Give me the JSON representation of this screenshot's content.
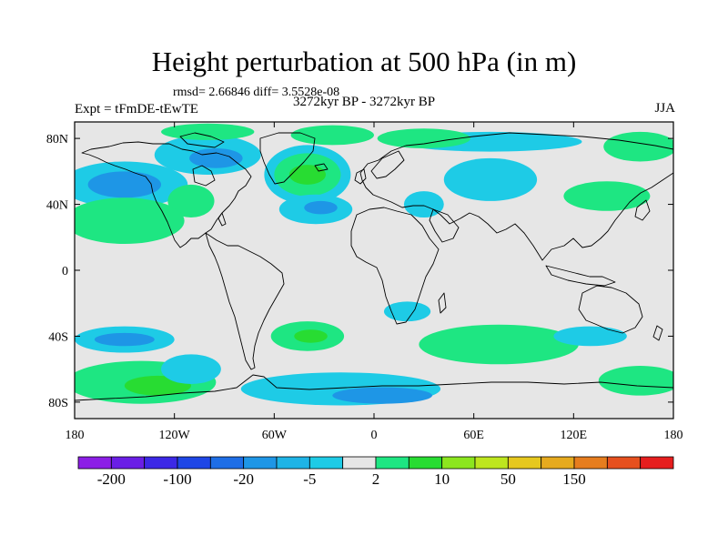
{
  "title": "Height perturbation at 500 hPa (in m)",
  "stats": "rmsd= 2.66846 diff= 3.5528e-08",
  "experiment": "Expt = tFmDE-tEwTE",
  "period": "3272kyr BP - 3272kyr BP",
  "season": "JJA",
  "map": {
    "projection": "cylindrical-equidistant",
    "lon_range": [
      -180,
      180
    ],
    "lat_range": [
      -90,
      90
    ],
    "lat_ticks": [
      {
        "value": 80,
        "label": "80N"
      },
      {
        "value": 40,
        "label": "40N"
      },
      {
        "value": 0,
        "label": "0"
      },
      {
        "value": -40,
        "label": "40S"
      },
      {
        "value": -80,
        "label": "80S"
      }
    ],
    "lon_ticks": [
      {
        "value": -180,
        "label": "180"
      },
      {
        "value": -120,
        "label": "120W"
      },
      {
        "value": -60,
        "label": "60W"
      },
      {
        "value": 0,
        "label": "0"
      },
      {
        "value": 60,
        "label": "60E"
      },
      {
        "value": 120,
        "label": "120E"
      },
      {
        "value": 180,
        "label": "180"
      }
    ],
    "background_color": "#e6e6e6",
    "coastline_color": "#000000"
  },
  "colorbar": {
    "colors": [
      "#8c1ee6",
      "#6a1ee6",
      "#3c28e6",
      "#1e46e6",
      "#1e6ee6",
      "#1e96e6",
      "#1eb4e6",
      "#1ecbe6",
      "#e6e6e6",
      "#1ee682",
      "#28dc32",
      "#8ce61e",
      "#bee61e",
      "#e6c81e",
      "#e6aa1e",
      "#e67d1e",
      "#e6501e",
      "#e61e1e"
    ],
    "labels": [
      {
        "boundary": 1,
        "text": "-200"
      },
      {
        "boundary": 3,
        "text": "-100"
      },
      {
        "boundary": 5,
        "text": "-20"
      },
      {
        "boundary": 7,
        "text": "-5"
      },
      {
        "boundary": 9,
        "text": "2"
      },
      {
        "boundary": 11,
        "text": "10"
      },
      {
        "boundary": 13,
        "text": "50"
      },
      {
        "boundary": 15,
        "text": "150"
      }
    ]
  },
  "field": {
    "blobs": [
      {
        "lon": -150,
        "lat": 52,
        "rlon": 38,
        "rlat": 14,
        "level": "neg3"
      },
      {
        "lon": -150,
        "lat": 52,
        "rlon": 22,
        "rlat": 8,
        "level": "neg4"
      },
      {
        "lon": -110,
        "lat": 42,
        "rlon": 14,
        "rlat": 10,
        "level": "pos1"
      },
      {
        "lon": -100,
        "lat": 70,
        "rlon": 32,
        "rlat": 12,
        "level": "neg3"
      },
      {
        "lon": -95,
        "lat": 68,
        "rlon": 16,
        "rlat": 6,
        "level": "neg4"
      },
      {
        "lon": -100,
        "lat": 84,
        "rlon": 28,
        "rlat": 5,
        "level": "pos1"
      },
      {
        "lon": -40,
        "lat": 58,
        "rlon": 26,
        "rlat": 18,
        "level": "neg3"
      },
      {
        "lon": -40,
        "lat": 58,
        "rlon": 20,
        "rlat": 13,
        "level": "pos1"
      },
      {
        "lon": -40,
        "lat": 58,
        "rlon": 11,
        "rlat": 6,
        "level": "pos2"
      },
      {
        "lon": -150,
        "lat": 30,
        "rlon": 36,
        "rlat": 14,
        "level": "pos1"
      },
      {
        "lon": -25,
        "lat": 82,
        "rlon": 25,
        "rlat": 6,
        "level": "pos1"
      },
      {
        "lon": -35,
        "lat": 37,
        "rlon": 22,
        "rlat": 9,
        "level": "neg3"
      },
      {
        "lon": -32,
        "lat": 38,
        "rlon": 10,
        "rlat": 4,
        "level": "neg4"
      },
      {
        "lon": 30,
        "lat": 40,
        "rlon": 12,
        "rlat": 8,
        "level": "neg3"
      },
      {
        "lon": 70,
        "lat": 55,
        "rlon": 28,
        "rlat": 13,
        "level": "neg3"
      },
      {
        "lon": 70,
        "lat": 78,
        "rlon": 55,
        "rlat": 6,
        "level": "neg3"
      },
      {
        "lon": 30,
        "lat": 80,
        "rlon": 28,
        "rlat": 6,
        "level": "pos1"
      },
      {
        "lon": 160,
        "lat": 75,
        "rlon": 22,
        "rlat": 9,
        "level": "pos1"
      },
      {
        "lon": 140,
        "lat": 45,
        "rlon": 26,
        "rlat": 9,
        "level": "pos1"
      },
      {
        "lon": -150,
        "lat": -42,
        "rlon": 30,
        "rlat": 8,
        "level": "neg3"
      },
      {
        "lon": -150,
        "lat": -42,
        "rlon": 18,
        "rlat": 4,
        "level": "neg4"
      },
      {
        "lon": -140,
        "lat": -68,
        "rlon": 45,
        "rlat": 13,
        "level": "pos1"
      },
      {
        "lon": -130,
        "lat": -70,
        "rlon": 20,
        "rlat": 6,
        "level": "pos2"
      },
      {
        "lon": -110,
        "lat": -60,
        "rlon": 18,
        "rlat": 9,
        "level": "neg3"
      },
      {
        "lon": -40,
        "lat": -40,
        "rlon": 22,
        "rlat": 9,
        "level": "pos1"
      },
      {
        "lon": -38,
        "lat": -40,
        "rlon": 10,
        "rlat": 4,
        "level": "pos2"
      },
      {
        "lon": -20,
        "lat": -72,
        "rlon": 60,
        "rlat": 10,
        "level": "neg3"
      },
      {
        "lon": 5,
        "lat": -76,
        "rlon": 30,
        "rlat": 5,
        "level": "neg4"
      },
      {
        "lon": 20,
        "lat": -25,
        "rlon": 14,
        "rlat": 6,
        "level": "neg3"
      },
      {
        "lon": 75,
        "lat": -45,
        "rlon": 48,
        "rlat": 12,
        "level": "pos1"
      },
      {
        "lon": 130,
        "lat": -40,
        "rlon": 22,
        "rlat": 6,
        "level": "neg3"
      },
      {
        "lon": 160,
        "lat": -67,
        "rlon": 25,
        "rlat": 9,
        "level": "pos1"
      }
    ]
  }
}
